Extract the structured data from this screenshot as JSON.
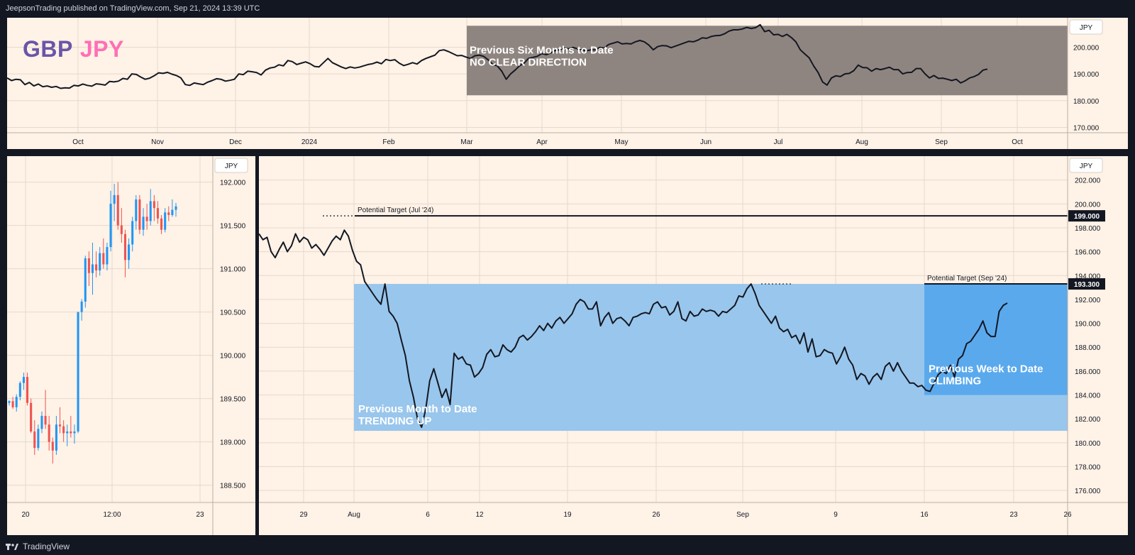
{
  "header": {
    "publisher": "JeepsonTrading published on TradingView.com, Sep 21, 2024 13:39 UTC"
  },
  "footer": {
    "brand": "TradingView"
  },
  "symbol": {
    "base": "GBP",
    "quote": "JPY"
  },
  "colors": {
    "background": "#fff2e6",
    "line": "#131722",
    "gray_box": "#8f8580",
    "blue_box": "#99c6ec",
    "blue_box_dark": "#5aa9ed",
    "up": "#2196f3",
    "down": "#ef5350"
  },
  "chart_data": [
    {
      "type": "line",
      "title": "",
      "currency_label": "JPY",
      "y_ticks": [
        "200.000",
        "190.000",
        "180.000",
        "170.000"
      ],
      "ylim": [
        168,
        211
      ],
      "x_ticks": [
        "Oct",
        "Nov",
        "Dec",
        "2024",
        "Feb",
        "Mar",
        "Apr",
        "May",
        "Jun",
        "Jul",
        "Aug",
        "Sep",
        "Oct"
      ],
      "annotation": {
        "line1": "Previous Six Months to Date",
        "line2": "NO CLEAR DIRECTION",
        "x_range": [
          "Mar",
          "end"
        ],
        "y_range": [
          182,
          208
        ]
      },
      "series": [
        {
          "values": [
            188.5,
            187.5,
            188,
            187.8,
            186,
            186.8,
            185.5,
            186.2,
            185.2,
            185.5,
            185.0,
            185.3,
            184.6,
            184.8,
            184.7,
            185.7,
            185.5,
            186.2,
            185.7,
            185.4,
            186.3,
            186.1,
            185.8,
            187.2,
            187.0,
            187.3,
            188.3,
            188.0,
            190.0,
            189.8,
            188.8,
            188.0,
            188.4,
            189.3,
            190.4,
            190.2,
            190.6,
            189.9,
            189.4,
            188.5,
            186.0,
            185.7,
            186.6,
            186.3,
            186.0,
            186.9,
            187.5,
            188.2,
            188.0,
            187.3,
            187.6,
            188.0,
            190.0,
            189.7,
            191.0,
            190.8,
            190.5,
            189.6,
            191.4,
            192.2,
            192.5,
            193.4,
            193.0,
            195.0,
            194.6,
            193.5,
            194.0,
            194.5,
            193.8,
            192.8,
            192.6,
            194.2,
            195.8,
            194.2,
            193.4,
            192.6,
            192.0,
            192.6,
            192.2,
            192.5,
            193.0,
            193.5,
            193.8,
            194.4,
            193.8,
            195.4,
            195.0,
            195.3,
            194.0,
            193.1,
            193.6,
            194.2,
            193.7,
            195.0,
            195.8,
            196.4,
            197.0,
            198.7,
            199.0,
            198.4,
            197.6,
            196.8,
            196.9,
            196.3,
            195.8,
            196.8,
            197.0,
            196.5,
            195.2,
            193.5,
            193.0,
            191.0,
            188.0,
            190.0,
            191.4,
            193.0,
            194.0,
            195.8,
            196.2,
            196.6,
            197.6,
            197.2,
            197.8,
            198.8,
            199.0,
            199.7,
            199.4,
            199.9,
            199.4,
            199.0,
            198.6,
            199.0,
            199.0,
            199.9,
            199.7,
            201.0,
            201.5,
            202.0,
            201.2,
            201.4,
            201.2,
            202.0,
            202.5,
            202.0,
            200.8,
            199.0,
            200.2,
            200.6,
            200.5,
            199.8,
            200.4,
            201.0,
            201.6,
            202.2,
            202.0,
            202.6,
            203.5,
            203.3,
            204.0,
            204.3,
            204.4,
            205.0,
            206.0,
            206.5,
            206.5,
            206.8,
            207.4,
            207.0,
            207.3,
            208.4,
            205.8,
            206.3,
            204.6,
            204.8,
            204.0,
            204.8,
            203.6,
            202.0,
            199.0,
            197.5,
            196.0,
            193.0,
            190.5,
            187.0,
            185.8,
            188.5,
            189.3,
            189.0,
            190.0,
            190.2,
            191.2,
            193.3,
            192.4,
            192.3,
            191.0,
            192.0,
            191.6,
            192.0,
            192.5,
            191.6,
            191.6,
            190.0,
            190.5,
            190.6,
            192.0,
            192.0,
            190.0,
            188.5,
            189.4,
            188.3,
            188.4,
            188.0,
            187.5,
            188.0,
            186.6,
            187.4,
            188.5,
            189.0,
            189.8,
            191.4,
            191.8
          ]
        }
      ]
    },
    {
      "type": "candlestick",
      "title": "",
      "currency_label": "JPY",
      "y_ticks": [
        "192.000",
        "191.500",
        "191.000",
        "190.500",
        "190.000",
        "189.500",
        "189.000",
        "188.500"
      ],
      "ylim": [
        188.3,
        192.3
      ],
      "x_ticks": [
        "20",
        "12:00",
        "23"
      ],
      "candles": [
        [
          189.45,
          189.48,
          189.42,
          189.47
        ],
        [
          189.47,
          189.52,
          189.38,
          189.4
        ],
        [
          189.4,
          189.55,
          189.35,
          189.52
        ],
        [
          189.52,
          189.7,
          189.48,
          189.68
        ],
        [
          189.68,
          189.8,
          189.6,
          189.75
        ],
        [
          189.75,
          189.8,
          189.42,
          189.45
        ],
        [
          189.45,
          189.5,
          189.1,
          189.12
        ],
        [
          189.12,
          189.25,
          188.85,
          188.93
        ],
        [
          188.93,
          189.2,
          188.9,
          189.15
        ],
        [
          189.15,
          189.35,
          189.1,
          189.3
        ],
        [
          189.3,
          189.6,
          189.15,
          189.2
        ],
        [
          189.2,
          189.3,
          188.9,
          189.0
        ],
        [
          189.0,
          189.05,
          188.75,
          188.9
        ],
        [
          188.9,
          189.3,
          188.85,
          189.2
        ],
        [
          189.2,
          189.4,
          189.1,
          189.18
        ],
        [
          189.18,
          189.25,
          189.0,
          189.1
        ],
        [
          189.1,
          189.2,
          188.95,
          189.12
        ],
        [
          189.12,
          189.3,
          189.05,
          189.1
        ],
        [
          189.1,
          189.2,
          188.98,
          189.12
        ],
        [
          189.12,
          190.5,
          189.1,
          190.5
        ],
        [
          190.5,
          190.65,
          190.4,
          190.62
        ],
        [
          190.62,
          191.15,
          190.55,
          191.12
        ],
        [
          191.12,
          191.2,
          190.8,
          190.95
        ],
        [
          190.95,
          191.3,
          190.7,
          191.05
        ],
        [
          191.05,
          191.2,
          190.9,
          190.98
        ],
        [
          190.98,
          191.25,
          190.92,
          191.18
        ],
        [
          191.18,
          191.35,
          191.0,
          191.05
        ],
        [
          191.05,
          191.3,
          190.98,
          191.25
        ],
        [
          191.25,
          191.9,
          191.2,
          191.75
        ],
        [
          191.75,
          191.98,
          191.55,
          191.85
        ],
        [
          191.85,
          192.0,
          191.45,
          191.5
        ],
        [
          191.5,
          191.7,
          191.3,
          191.4
        ],
        [
          191.4,
          191.45,
          190.9,
          191.1
        ],
        [
          191.1,
          191.35,
          191.0,
          191.28
        ],
        [
          191.28,
          191.6,
          191.2,
          191.55
        ],
        [
          191.55,
          191.85,
          191.45,
          191.8
        ],
        [
          191.8,
          191.85,
          191.4,
          191.45
        ],
        [
          191.45,
          191.7,
          191.38,
          191.6
        ],
        [
          191.6,
          191.75,
          191.45,
          191.55
        ],
        [
          191.55,
          191.92,
          191.5,
          191.78
        ],
        [
          191.78,
          191.85,
          191.55,
          191.7
        ],
        [
          191.7,
          191.78,
          191.52,
          191.58
        ],
        [
          191.58,
          191.62,
          191.4,
          191.45
        ],
        [
          191.45,
          191.7,
          191.42,
          191.65
        ],
        [
          191.65,
          191.72,
          191.55,
          191.62
        ],
        [
          191.62,
          191.8,
          191.6,
          191.68
        ],
        [
          191.68,
          191.76,
          191.6,
          191.72
        ]
      ]
    },
    {
      "type": "line",
      "title": "",
      "currency_label": "JPY",
      "y_ticks": [
        "202.000",
        "200.000",
        "198.000",
        "196.000",
        "194.000",
        "192.000",
        "190.000",
        "188.000",
        "186.000",
        "184.000",
        "182.000",
        "180.000",
        "178.000",
        "176.000"
      ],
      "ylim": [
        175,
        204
      ],
      "x_ticks": [
        "29",
        "Aug",
        "6",
        "12",
        "19",
        "26",
        "Sep",
        "9",
        "16",
        "23",
        "26"
      ],
      "levels": [
        {
          "label": "Potential Target (Jul '24)",
          "value": 199.0,
          "badge": "199.000"
        },
        {
          "label": "Potential Target (Sep '24)",
          "value": 193.3,
          "badge": "193.300"
        }
      ],
      "annotations": [
        {
          "line1": "Previous Month to Date",
          "line2": "TRENDING UP",
          "y_range": [
            181,
            193.3
          ]
        },
        {
          "line1": "Previous Week to Date",
          "line2": "CLIMBING",
          "y_range": [
            184,
            193.3
          ]
        }
      ],
      "series": [
        {
          "values": [
            197.5,
            197.0,
            197.2,
            196.0,
            195.5,
            196.2,
            196.8,
            196.0,
            196.5,
            197.5,
            196.8,
            197.2,
            197.0,
            196.3,
            196.6,
            196.2,
            195.7,
            196.3,
            196.9,
            197.3,
            197.0,
            197.8,
            197.3,
            196.1,
            195.2,
            194.9,
            193.5,
            193.0,
            192.5,
            192.0,
            191.6,
            193.3,
            191.0,
            190.6,
            190.0,
            188.6,
            187.3,
            185.2,
            183.8,
            182.0,
            181.3,
            182.8,
            185.2,
            186.2,
            185.0,
            183.8,
            184.5,
            183.2,
            187.5,
            187.0,
            187.2,
            186.6,
            186.5,
            185.5,
            185.8,
            186.3,
            187.4,
            187.8,
            187.2,
            187.3,
            188.2,
            187.8,
            187.6,
            188.0,
            188.8,
            189.0,
            188.6,
            188.9,
            189.3,
            189.8,
            189.4,
            190.0,
            189.6,
            190.2,
            190.5,
            190.0,
            190.4,
            190.8,
            191.6,
            192.0,
            191.8,
            191.2,
            191.2,
            191.8,
            189.8,
            190.5,
            190.9,
            190.0,
            190.4,
            190.5,
            190.2,
            189.8,
            190.5,
            190.6,
            190.8,
            190.9,
            190.8,
            191.6,
            191.8,
            191.3,
            191.4,
            190.7,
            191.0,
            191.8,
            190.4,
            190.2,
            191.0,
            190.6,
            190.7,
            191.2,
            191.0,
            191.1,
            191.0,
            190.6,
            191.0,
            190.9,
            191.2,
            191.5,
            192.3,
            192.2,
            192.9,
            193.3,
            192.5,
            191.5,
            191.0,
            190.5,
            190.0,
            190.6,
            189.6,
            189.3,
            189.5,
            188.8,
            189.0,
            188.3,
            189.2,
            187.6,
            188.7,
            187.2,
            187.3,
            187.8,
            187.6,
            187.5,
            186.6,
            187.2,
            188.0,
            187.0,
            186.5,
            185.3,
            185.8,
            185.6,
            184.9,
            185.5,
            185.8,
            185.3,
            186.4,
            186.7,
            186.0,
            186.7,
            186.0,
            185.5,
            185.0,
            185.0,
            184.7,
            184.8,
            184.4,
            184.3,
            185.0,
            185.7,
            186.0,
            185.8,
            186.5,
            185.5,
            187.0,
            187.3,
            188.3,
            188.5,
            189.0,
            189.5,
            190.2,
            189.2,
            188.9,
            188.9,
            191.0,
            191.5,
            191.7
          ]
        }
      ]
    }
  ]
}
